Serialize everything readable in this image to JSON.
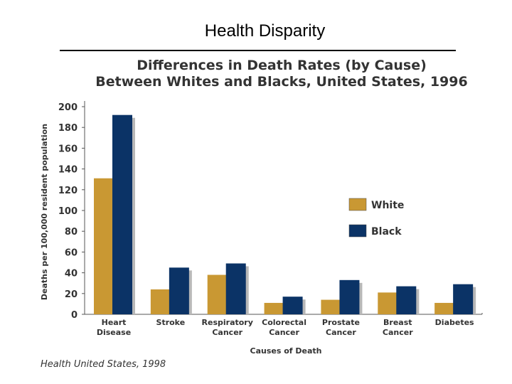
{
  "page": {
    "title": "Health Disparity"
  },
  "chart_data": {
    "type": "bar",
    "title_line1": "Differences in Death Rates (by Cause)",
    "title_line2": "Between Whites and Blacks, United States, 1996",
    "ylabel": "Deaths per 100,000 resident population",
    "xlabel": "Causes of Death",
    "ylim": [
      0,
      200
    ],
    "yticks": [
      0,
      20,
      40,
      60,
      80,
      100,
      120,
      140,
      160,
      180,
      200
    ],
    "categories": [
      [
        "Heart",
        "Disease"
      ],
      [
        "Stroke"
      ],
      [
        "Respiratory",
        "Cancer"
      ],
      [
        "Colorectal",
        "Cancer"
      ],
      [
        "Prostate",
        "Cancer"
      ],
      [
        "Breast",
        "Cancer"
      ],
      [
        "Diabetes"
      ]
    ],
    "series": [
      {
        "name": "White",
        "color": "#C99833",
        "values": [
          131,
          24,
          38,
          11,
          14,
          21,
          11
        ]
      },
      {
        "name": "Black",
        "color": "#0B3366",
        "values": [
          192,
          45,
          49,
          17,
          33,
          27,
          29
        ]
      }
    ],
    "legend_position": "right",
    "grid": false,
    "source": "Health United States, 1998"
  }
}
